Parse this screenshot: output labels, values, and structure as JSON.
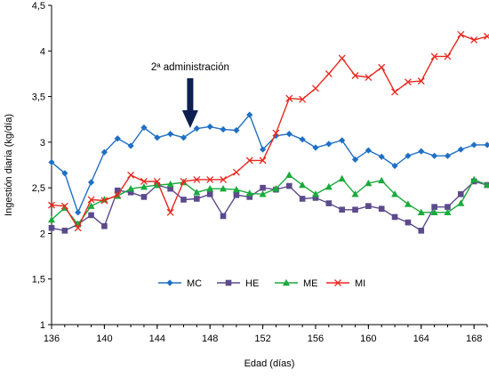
{
  "chart_data": {
    "type": "line",
    "title": "",
    "xlabel": "Edad (días)",
    "ylabel": "Ingestión diaria (kg/día)",
    "ylim": [
      1,
      4.5
    ],
    "xlim": [
      136,
      169
    ],
    "x_ticks": [
      136,
      140,
      144,
      148,
      152,
      156,
      160,
      164,
      168
    ],
    "y_ticks": [
      "1",
      "1,5",
      "2",
      "2,5",
      "3",
      "3,5",
      "4",
      "4,5"
    ],
    "y_tick_values": [
      1,
      1.5,
      2,
      2.5,
      3,
      3.5,
      4,
      4.5
    ],
    "grid": false,
    "legend_position": "bottom-center",
    "annotation": {
      "text": "2ª administración",
      "x": 146.5,
      "arrow": "down"
    },
    "x": [
      136,
      137,
      138,
      139,
      140,
      141,
      142,
      143,
      144,
      145,
      146,
      147,
      148,
      149,
      150,
      151,
      152,
      153,
      154,
      155,
      156,
      157,
      158,
      159,
      160,
      161,
      162,
      163,
      164,
      165,
      166,
      167,
      168,
      169
    ],
    "series": [
      {
        "name": "MC",
        "color": "#1f6fc5",
        "marker": "diamond",
        "values": [
          2.78,
          2.66,
          2.23,
          2.56,
          2.89,
          3.04,
          2.96,
          3.16,
          3.05,
          3.09,
          3.05,
          3.15,
          3.17,
          3.14,
          3.13,
          3.3,
          2.92,
          3.07,
          3.09,
          3.03,
          2.94,
          2.98,
          3.02,
          2.81,
          2.91,
          2.84,
          2.74,
          2.85,
          2.9,
          2.85,
          2.85,
          2.92,
          2.97,
          2.97
        ]
      },
      {
        "name": "HE",
        "color": "#5c4a8c",
        "marker": "square",
        "values": [
          2.06,
          2.03,
          2.1,
          2.2,
          2.08,
          2.47,
          2.45,
          2.4,
          2.53,
          2.49,
          2.37,
          2.38,
          2.43,
          2.19,
          2.42,
          2.4,
          2.5,
          2.48,
          2.52,
          2.38,
          2.39,
          2.33,
          2.26,
          2.26,
          2.3,
          2.27,
          2.18,
          2.12,
          2.03,
          2.29,
          2.29,
          2.43,
          2.57,
          2.53
        ]
      },
      {
        "name": "ME",
        "color": "#1aaa3c",
        "marker": "triangle",
        "values": [
          2.15,
          2.28,
          2.1,
          2.3,
          2.37,
          2.41,
          2.49,
          2.51,
          2.53,
          2.54,
          2.56,
          2.45,
          2.49,
          2.49,
          2.48,
          2.44,
          2.43,
          2.49,
          2.64,
          2.53,
          2.43,
          2.51,
          2.6,
          2.43,
          2.55,
          2.58,
          2.43,
          2.32,
          2.23,
          2.23,
          2.23,
          2.33,
          2.59,
          2.53
        ]
      },
      {
        "name": "MI",
        "color": "#e8281e",
        "marker": "x",
        "values": [
          2.31,
          2.3,
          2.06,
          2.37,
          2.36,
          2.42,
          2.64,
          2.57,
          2.57,
          2.23,
          2.57,
          2.59,
          2.59,
          2.59,
          2.67,
          2.8,
          2.8,
          3.1,
          3.48,
          3.47,
          3.59,
          3.75,
          3.92,
          3.73,
          3.71,
          3.82,
          3.55,
          3.66,
          3.67,
          3.94,
          3.94,
          4.18,
          4.12,
          4.16
        ]
      }
    ]
  }
}
